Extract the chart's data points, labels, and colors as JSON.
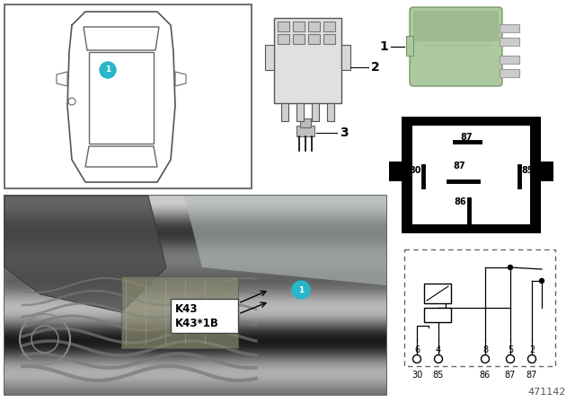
{
  "doc_number": "471142",
  "bg_color": "#ffffff",
  "relay_green": "#adc9a0",
  "relay_green_dark": "#7a9a6a",
  "badge_color": "#29b6c8",
  "badge_text": "#ffffff",
  "k43": "K43",
  "k43b": "K43*1B",
  "pin_top": [
    "6",
    "4",
    "8",
    "5",
    "2"
  ],
  "pin_bot": [
    "30",
    "85",
    "86",
    "87",
    "87"
  ],
  "schematic_labels": [
    "87",
    "30",
    "87",
    "85",
    "86"
  ]
}
